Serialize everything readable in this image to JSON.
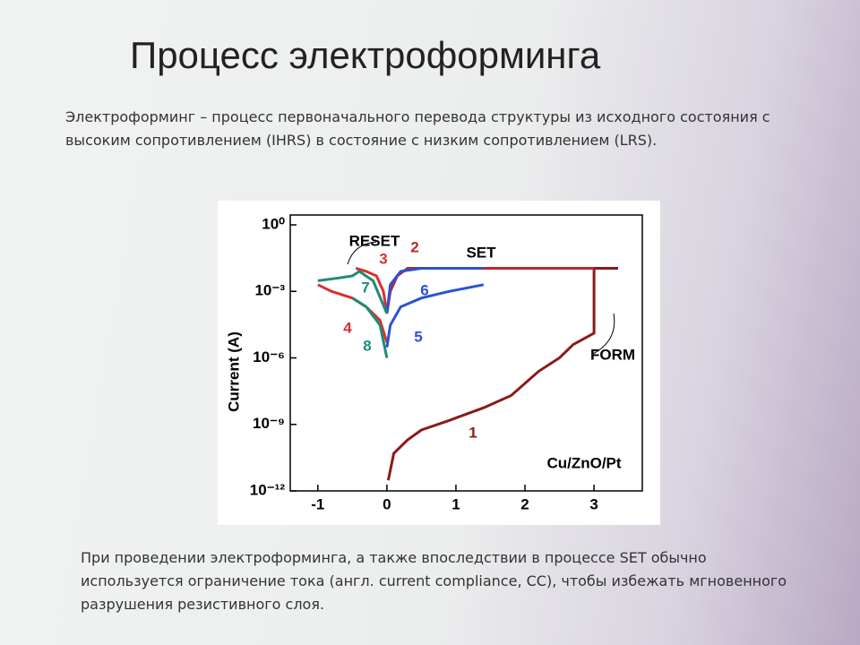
{
  "title": "Процесс электроформинга",
  "intro": "Электроформинг – процесс первоначального перевода структуры из исходного состояния с высоким сопротивлением  (IHRS) в состояние с низким сопротивлением (LRS).",
  "note": "При проведении электроформинга, а также впоследствии в процессе SET обычно используется ограничение тока (англ. current compliance, CC), чтобы избежать мгновенного разрушения резистивного слоя.",
  "chart_data": {
    "type": "line",
    "ylabel": "Current (A)",
    "log_y": true,
    "xlim": [
      -1.4,
      3.7
    ],
    "xticks": [
      -1,
      0,
      1,
      2,
      3
    ],
    "ylim": [
      1e-12,
      1
    ],
    "yticks": [
      {
        "value": 1,
        "label": "10⁰"
      },
      {
        "value": 0.001,
        "label": "10⁻³"
      },
      {
        "value": 1e-06,
        "label": "10⁻⁶"
      },
      {
        "value": 1e-09,
        "label": "10⁻⁹"
      },
      {
        "value": 1e-12,
        "label": "10⁻¹²"
      }
    ],
    "annotations": [
      "RESET",
      "SET",
      "FORM",
      "Cu/ZnO/Pt"
    ],
    "series": [
      {
        "name": "1",
        "color": "#8b1a1a",
        "x": [
          0.02,
          0.1,
          0.3,
          0.5,
          0.9,
          1.4,
          1.8,
          2.2,
          2.5,
          2.7,
          3.0,
          3.0,
          3.35
        ],
        "values": [
          3e-12,
          5e-11,
          2e-10,
          5.6e-10,
          1.5e-09,
          5.6e-09,
          2e-08,
          2.5e-07,
          1e-06,
          4e-06,
          1.3e-05,
          0.011,
          0.011
        ]
      },
      {
        "name": "2",
        "color": "#c0262a",
        "x": [
          0,
          0.05,
          0.15,
          0.3,
          1.0,
          2.0,
          3.0
        ],
        "values": [
          0.0001,
          0.001,
          0.005,
          0.011,
          0.011,
          0.011,
          0.011
        ]
      },
      {
        "name": "3",
        "color": "#d8302f",
        "x": [
          -0.45,
          -0.3,
          -0.15,
          -0.05,
          0
        ],
        "values": [
          0.011,
          0.008,
          0.005,
          0.001,
          0.0001
        ]
      },
      {
        "name": "4",
        "color": "#d8302f",
        "x": [
          -1.0,
          -0.8,
          -0.5,
          -0.3,
          -0.1,
          0
        ],
        "values": [
          0.002,
          0.001,
          0.0005,
          0.0002,
          5e-05,
          5e-06
        ]
      },
      {
        "name": "5",
        "color": "#2a52d6",
        "x": [
          0,
          0.05,
          0.2,
          0.5,
          0.9,
          1.4
        ],
        "values": [
          3e-06,
          3e-05,
          0.0002,
          0.0005,
          0.001,
          0.002
        ]
      },
      {
        "name": "6",
        "color": "#2a52d6",
        "x": [
          0,
          0.05,
          0.2,
          0.5,
          1.0,
          1.4
        ],
        "values": [
          0.0001,
          0.002,
          0.008,
          0.011,
          0.011,
          0.011
        ]
      },
      {
        "name": "7",
        "color": "#1f8a7a",
        "x": [
          -1.0,
          -0.7,
          -0.5,
          -0.4,
          -0.2,
          0
        ],
        "values": [
          0.003,
          0.004,
          0.005,
          0.008,
          0.003,
          0.0001
        ]
      },
      {
        "name": "8",
        "color": "#1f8a7a",
        "x": [
          -0.5,
          -0.3,
          -0.1,
          0
        ],
        "values": [
          0.0005,
          0.0002,
          3e-05,
          1e-06
        ]
      }
    ]
  }
}
